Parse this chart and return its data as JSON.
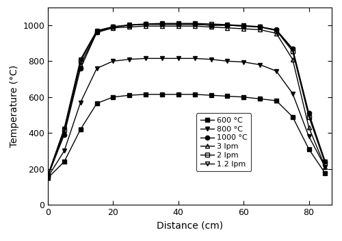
{
  "title": "",
  "xlabel": "Distance (cm)",
  "ylabel": "Temperature (°C)",
  "xlim": [
    0,
    87
  ],
  "ylim": [
    0,
    1100
  ],
  "yticks": [
    0,
    200,
    400,
    600,
    800,
    1000
  ],
  "xticks": [
    0,
    20,
    40,
    60,
    80
  ],
  "series": [
    {
      "label": "600 °C",
      "marker": "s",
      "fillstyle": "full",
      "color": "black",
      "x": [
        0,
        5,
        10,
        15,
        20,
        25,
        30,
        35,
        40,
        45,
        50,
        55,
        60,
        65,
        70,
        75,
        80,
        85
      ],
      "y": [
        150,
        240,
        420,
        565,
        600,
        610,
        615,
        615,
        615,
        615,
        610,
        605,
        600,
        590,
        580,
        490,
        310,
        175
      ]
    },
    {
      "label": "800 °C",
      "marker": "v",
      "fillstyle": "full",
      "color": "black",
      "x": [
        0,
        5,
        10,
        15,
        20,
        25,
        30,
        35,
        40,
        45,
        50,
        55,
        60,
        65,
        70,
        75,
        80,
        85
      ],
      "y": [
        155,
        300,
        570,
        760,
        800,
        810,
        815,
        815,
        815,
        815,
        810,
        800,
        795,
        780,
        745,
        620,
        380,
        210
      ]
    },
    {
      "label": "1000 °C",
      "marker": "o",
      "fillstyle": "full",
      "color": "black",
      "x": [
        0,
        5,
        10,
        15,
        20,
        25,
        30,
        35,
        40,
        45,
        50,
        55,
        60,
        65,
        70,
        75,
        80,
        85
      ],
      "y": [
        160,
        390,
        760,
        960,
        990,
        1000,
        1005,
        1005,
        1005,
        1005,
        1000,
        1000,
        995,
        990,
        975,
        870,
        510,
        240
      ]
    },
    {
      "label": "3 lpm",
      "marker": "^",
      "fillstyle": "none",
      "color": "black",
      "x": [
        0,
        5,
        10,
        15,
        20,
        25,
        30,
        35,
        40,
        45,
        50,
        55,
        60,
        65,
        70,
        75,
        80,
        85
      ],
      "y": [
        160,
        400,
        780,
        960,
        985,
        990,
        995,
        995,
        995,
        995,
        990,
        985,
        980,
        975,
        955,
        810,
        430,
        210
      ]
    },
    {
      "label": "2 lpm",
      "marker": "s",
      "fillstyle": "none",
      "color": "black",
      "x": [
        0,
        5,
        10,
        15,
        20,
        25,
        30,
        35,
        40,
        45,
        50,
        55,
        60,
        65,
        70,
        75,
        80,
        85
      ],
      "y": [
        165,
        415,
        800,
        965,
        990,
        1000,
        1005,
        1005,
        1005,
        1005,
        1000,
        1000,
        995,
        990,
        970,
        855,
        490,
        230
      ]
    },
    {
      "label": "1.2 lpm",
      "marker": "v",
      "fillstyle": "none",
      "color": "black",
      "x": [
        0,
        5,
        10,
        15,
        20,
        25,
        30,
        35,
        40,
        45,
        50,
        55,
        60,
        65,
        70,
        75,
        80,
        85
      ],
      "y": [
        165,
        425,
        810,
        970,
        992,
        1002,
        1007,
        1010,
        1010,
        1010,
        1007,
        1003,
        998,
        992,
        972,
        865,
        500,
        240
      ]
    }
  ],
  "background_color": "#ffffff",
  "markersize": 4.5,
  "linewidth": 1.0
}
